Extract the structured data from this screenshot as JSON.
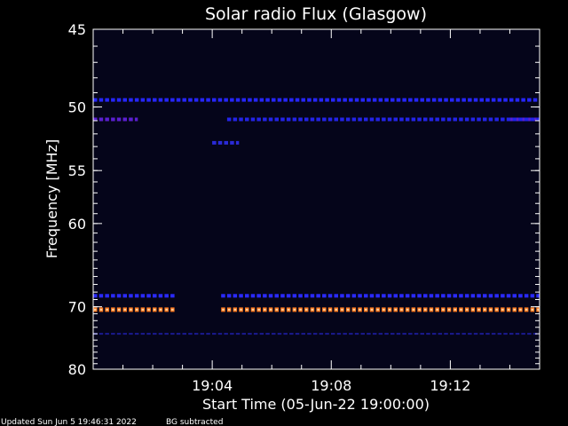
{
  "chart_data": {
    "type": "heatmap",
    "title": "Solar radio Flux (Glasgow)",
    "xlabel": "Start Time (05-Jun-22 19:00:00)",
    "ylabel": "Frequency [MHz]",
    "x_unit": "minutes after 19:00:00",
    "xlim": [
      0,
      15
    ],
    "ylim": [
      80,
      45
    ],
    "x_ticks": [
      {
        "value": 4,
        "label": "19:04"
      },
      {
        "value": 8,
        "label": "19:08"
      },
      {
        "value": 12,
        "label": "19:12"
      }
    ],
    "y_ticks": [
      {
        "value": 45,
        "label": "45"
      },
      {
        "value": 50,
        "label": "50"
      },
      {
        "value": 55,
        "label": "55"
      },
      {
        "value": 60,
        "label": "60"
      },
      {
        "value": 70,
        "label": "70"
      },
      {
        "value": 80,
        "label": "80"
      }
    ],
    "background_color": "#05051a",
    "emission_bands": [
      {
        "frequency_mhz": 49.5,
        "intensity": "medium",
        "color": "#2626ff",
        "segments": [
          [
            0,
            15
          ]
        ]
      },
      {
        "frequency_mhz": 50.9,
        "intensity": "medium-high",
        "color": "#5a1fd0",
        "segments": [
          [
            0,
            1.5
          ],
          [
            14,
            15
          ]
        ]
      },
      {
        "frequency_mhz": 50.9,
        "intensity": "medium",
        "color": "#2323e8",
        "segments": [
          [
            4.5,
            15
          ]
        ]
      },
      {
        "frequency_mhz": 52.7,
        "intensity": "medium",
        "color": "#2a2ad8",
        "segments": [
          [
            4.0,
            4.9
          ]
        ]
      },
      {
        "frequency_mhz": 68.5,
        "intensity": "medium",
        "color": "#2a2aff",
        "segments": [
          [
            0,
            2.8
          ],
          [
            4.3,
            15
          ]
        ]
      },
      {
        "frequency_mhz": 70.4,
        "intensity": "high",
        "color": "#ff7a20",
        "segments": [
          [
            0,
            2.8
          ],
          [
            4.3,
            15
          ]
        ]
      },
      {
        "frequency_mhz": 74.0,
        "intensity": "low",
        "color": "#1a1a90",
        "segments": [
          [
            0,
            15
          ]
        ]
      }
    ]
  },
  "footer": {
    "updated": "Updated Sun Jun  5 19:46:31 2022",
    "note": "BG subtracted"
  }
}
